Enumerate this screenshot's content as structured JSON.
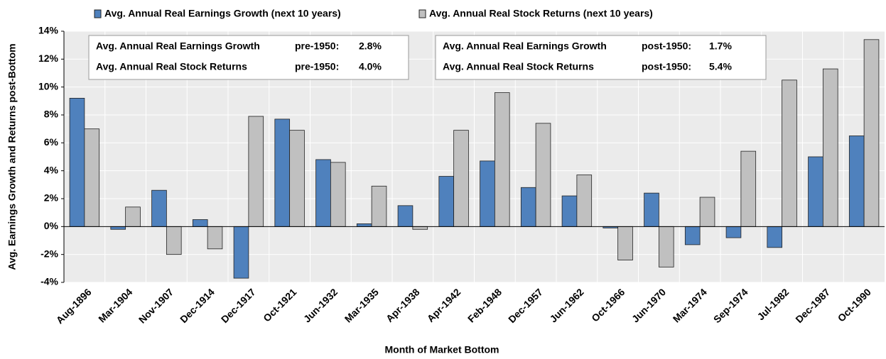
{
  "chart_data": {
    "type": "bar",
    "xlabel": "Month of Market Bottom",
    "ylabel": "Avg. Earnings Growth and Returns post-Bottom",
    "categories": [
      "Aug-1896",
      "Mar-1904",
      "Nov-1907",
      "Dec-1914",
      "Dec-1917",
      "Oct-1921",
      "Jun-1932",
      "Mar-1935",
      "Apr-1938",
      "Apr-1942",
      "Feb-1948",
      "Dec-1957",
      "Jun-1962",
      "Oct-1966",
      "Jun-1970",
      "Mar-1974",
      "Sep-1974",
      "Jul-1982",
      "Dec-1987",
      "Oct-1990"
    ],
    "series": [
      {
        "name": "Avg. Annual Real Earnings Growth (next 10 years)",
        "color": "#4f81bd",
        "values": [
          9.2,
          -0.2,
          2.6,
          0.5,
          -3.7,
          7.7,
          4.8,
          0.2,
          1.5,
          3.6,
          4.7,
          2.8,
          2.2,
          -0.1,
          2.4,
          -1.3,
          -0.8,
          -1.5,
          5.0,
          6.5
        ]
      },
      {
        "name": "Avg. Annual Real Stock Returns (next 10 years)",
        "color": "#c0c0c0",
        "values": [
          7.0,
          1.4,
          -2.0,
          -1.6,
          7.9,
          6.9,
          4.6,
          2.9,
          -0.2,
          6.9,
          9.6,
          7.4,
          3.7,
          -2.4,
          -2.9,
          2.1,
          5.4,
          10.5,
          11.3,
          13.4
        ]
      }
    ],
    "ylim": [
      -4,
      14
    ],
    "yticks": [
      {
        "value": -4,
        "label": "-4%"
      },
      {
        "value": -2,
        "label": "-2%"
      },
      {
        "value": 0,
        "label": "0%"
      },
      {
        "value": 2,
        "label": "2%"
      },
      {
        "value": 4,
        "label": "4%"
      },
      {
        "value": 6,
        "label": "6%"
      },
      {
        "value": 8,
        "label": "8%"
      },
      {
        "value": 10,
        "label": "10%"
      },
      {
        "value": 12,
        "label": "12%"
      },
      {
        "value": 14,
        "label": "14%"
      }
    ],
    "grid": true,
    "annotations": [
      {
        "rows": [
          [
            "Avg. Annual Real Earnings Growth",
            "pre-1950:",
            "2.8%"
          ],
          [
            "Avg. Annual Real Stock Returns",
            "pre-1950:",
            "4.0%"
          ]
        ]
      },
      {
        "rows": [
          [
            "Avg. Annual Real Earnings Growth",
            "post-1950:",
            "1.7%"
          ],
          [
            "Avg. Annual Real Stock Returns",
            "post-1950:",
            "5.4%"
          ]
        ]
      }
    ]
  }
}
